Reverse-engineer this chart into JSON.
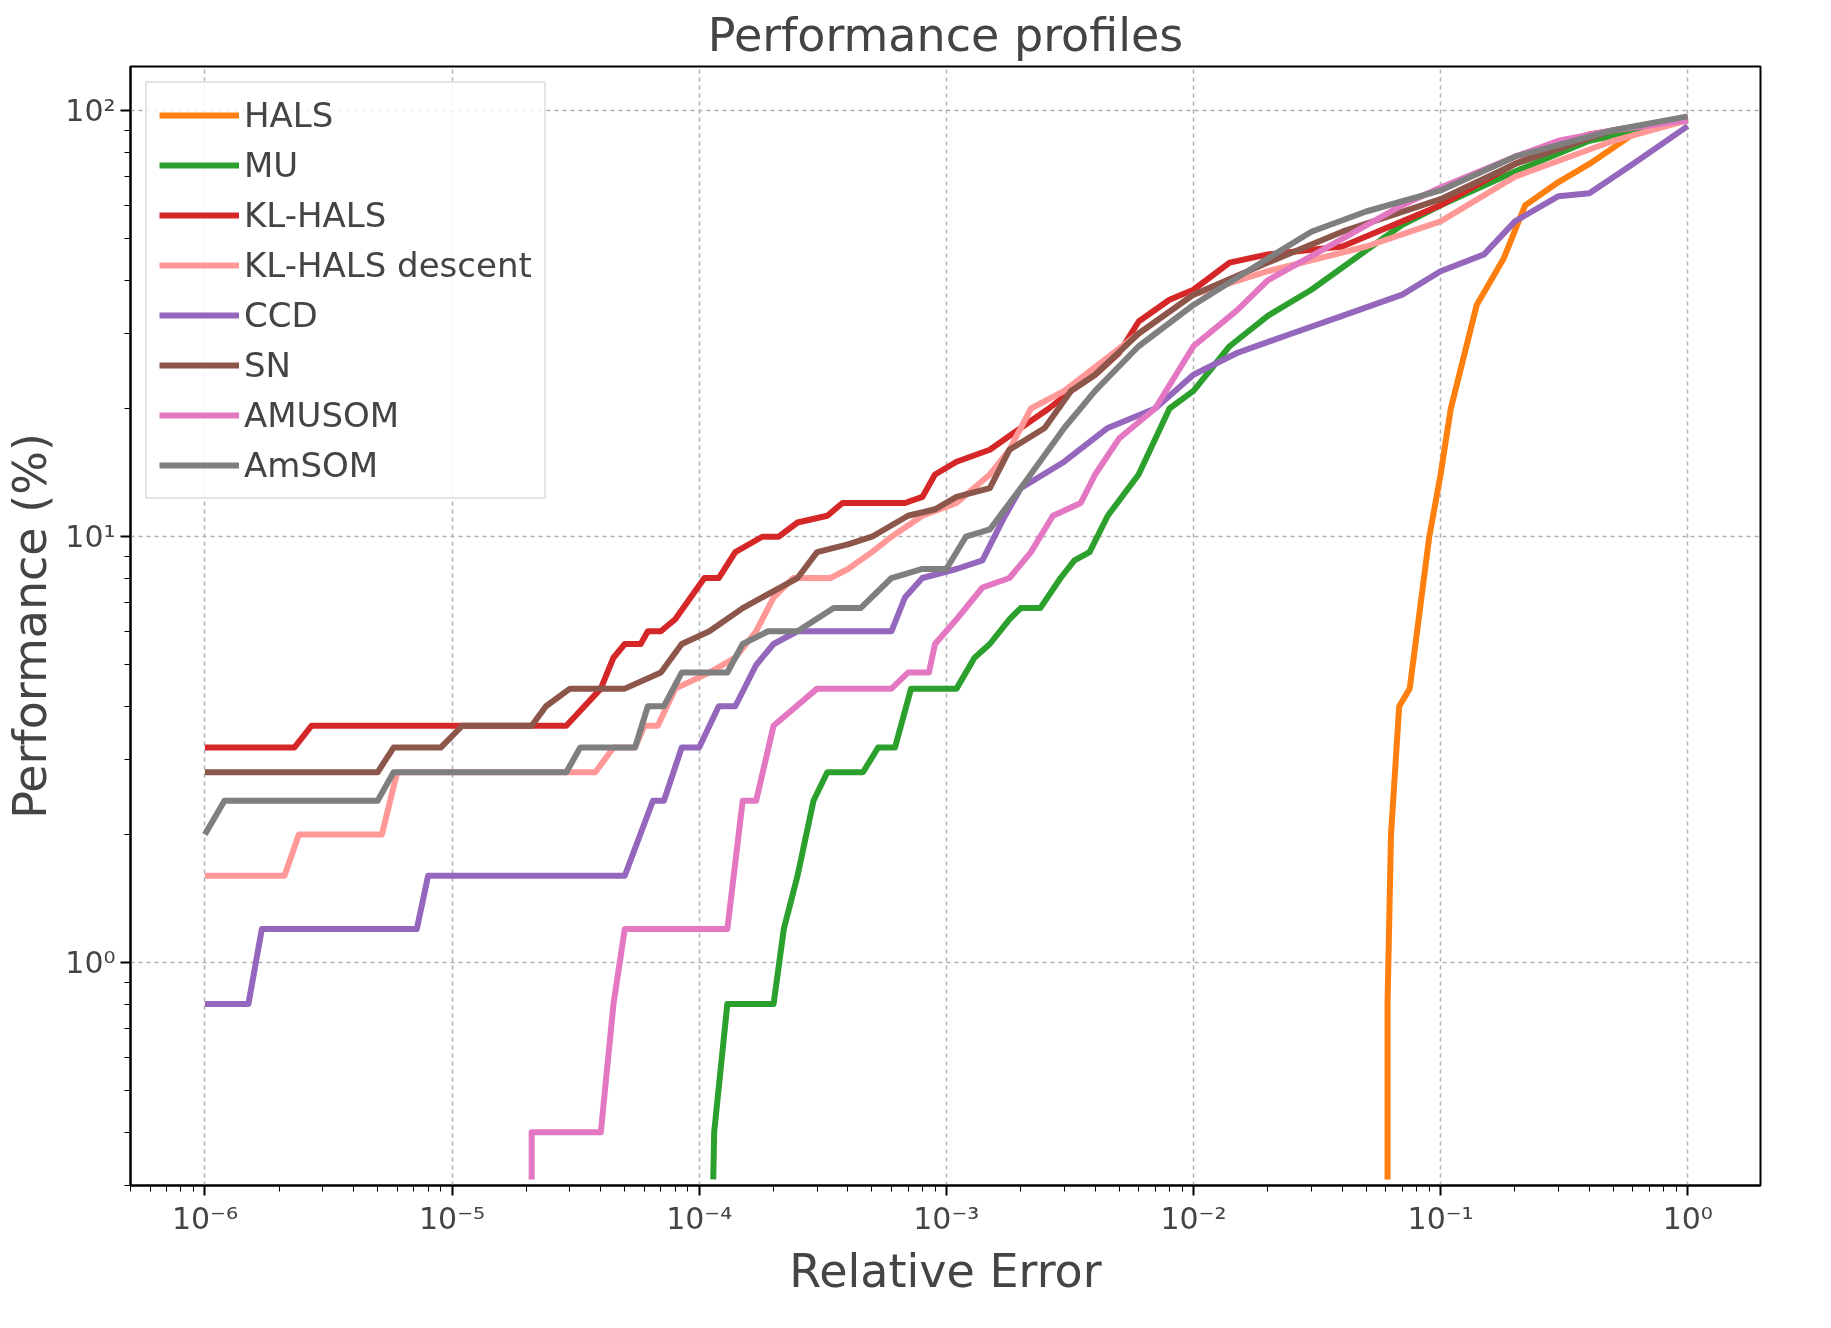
{
  "chart_data": {
    "type": "line",
    "title": "Performance profiles",
    "xlabel": "Relative Error",
    "ylabel": "Performance (%)",
    "log": "xy",
    "grid": true,
    "legend": "top left",
    "line_style": "solid",
    "marker": "none",
    "xlim": [
      5e-07,
      1.97
    ],
    "ylim": [
      0.3,
      127
    ],
    "xticks": [
      {
        "value": 1e-06,
        "label": "10⁻⁶"
      },
      {
        "value": 1e-05,
        "label": "10⁻⁵"
      },
      {
        "value": 0.0001,
        "label": "10⁻⁴"
      },
      {
        "value": 0.001,
        "label": "10⁻³"
      },
      {
        "value": 0.01,
        "label": "10⁻²"
      },
      {
        "value": 0.1,
        "label": "10⁻¹"
      },
      {
        "value": 1,
        "label": "10⁰"
      }
    ],
    "yticks": [
      {
        "value": 1,
        "label": "10⁰"
      },
      {
        "value": 10,
        "label": "10¹"
      },
      {
        "value": 100,
        "label": "10²"
      }
    ],
    "series": [
      {
        "name": "HALS",
        "color": "#ff7f0e",
        "x": [
          0.061,
          0.061,
          0.063,
          0.068,
          0.075,
          0.09,
          0.1,
          0.11,
          0.14,
          0.18,
          0.22,
          0.3,
          0.4,
          0.6,
          1
        ],
        "values": [
          0.31,
          0.8,
          2.0,
          4.0,
          4.4,
          10,
          14,
          20,
          35,
          45,
          60,
          68,
          75,
          88,
          95
        ]
      },
      {
        "name": "MU",
        "color": "#2ca02c",
        "x": [
          0.000114,
          0.000115,
          0.00013,
          0.0002,
          0.00022,
          0.00025,
          0.00029,
          0.00033,
          0.00046,
          0.00053,
          0.00062,
          0.00072,
          0.0011,
          0.0013,
          0.0015,
          0.0018,
          0.002,
          0.0024,
          0.0029,
          0.0033,
          0.0038,
          0.0045,
          0.006,
          0.008,
          0.01,
          0.014,
          0.02,
          0.03,
          0.05,
          0.07,
          0.1,
          0.2,
          0.4,
          1
        ],
        "values": [
          0.31,
          0.4,
          0.8,
          0.8,
          1.2,
          1.6,
          2.4,
          2.8,
          2.8,
          3.2,
          3.2,
          4.4,
          4.4,
          5.2,
          5.6,
          6.4,
          6.8,
          6.8,
          8.0,
          8.8,
          9.2,
          11.2,
          14,
          20,
          22,
          28,
          33,
          38,
          47,
          54,
          60,
          72,
          85,
          95
        ]
      },
      {
        "name": "KL-HALS",
        "color": "#d62728",
        "x": [
          1e-06,
          2.3e-06,
          2.7e-06,
          2.9e-05,
          4e-05,
          4.5e-05,
          5e-05,
          5.8e-05,
          6.2e-05,
          7e-05,
          8e-05,
          0.000105,
          0.00012,
          0.00014,
          0.00018,
          0.00021,
          0.00025,
          0.00033,
          0.00038,
          0.00068,
          0.0008,
          0.0009,
          0.0011,
          0.0015,
          0.002,
          0.0026,
          0.0032,
          0.004,
          0.005,
          0.006,
          0.008,
          0.01,
          0.014,
          0.02,
          0.04,
          0.07,
          0.1,
          0.2,
          0.4,
          1
        ],
        "values": [
          3.2,
          3.2,
          3.6,
          3.6,
          4.4,
          5.2,
          5.6,
          5.6,
          6.0,
          6.0,
          6.4,
          8.0,
          8.0,
          9.2,
          10,
          10,
          10.8,
          11.2,
          12,
          12,
          12.4,
          14,
          15,
          16,
          18,
          20,
          22,
          24,
          27,
          32,
          36,
          38,
          44,
          46,
          48,
          55,
          60,
          75,
          88,
          96
        ]
      },
      {
        "name": "KL-HALS descent",
        "color": "#ff9896",
        "x": [
          1e-06,
          2.1e-06,
          2.4e-06,
          5.2e-06,
          6e-06,
          3.8e-05,
          4.5e-05,
          5.5e-05,
          6e-05,
          6.8e-05,
          8e-05,
          0.00011,
          0.00014,
          0.00017,
          0.0002,
          0.00024,
          0.00034,
          0.0004,
          0.0005,
          0.0006,
          0.0008,
          0.0011,
          0.0015,
          0.0018,
          0.0022,
          0.003,
          0.004,
          0.006,
          0.01,
          0.02,
          0.05,
          0.1,
          0.2,
          0.5,
          1
        ],
        "values": [
          1.6,
          1.6,
          2.0,
          2.0,
          2.8,
          2.8,
          3.2,
          3.2,
          3.6,
          3.6,
          4.4,
          4.8,
          5.2,
          6.0,
          7.2,
          8.0,
          8.0,
          8.4,
          9.2,
          10,
          11.2,
          12,
          14,
          16,
          20,
          22,
          25,
          30,
          37,
          42,
          48,
          55,
          70,
          85,
          95
        ]
      },
      {
        "name": "CCD",
        "color": "#9467bd",
        "x": [
          1e-06,
          1.5e-06,
          1.7e-06,
          7.2e-06,
          8e-06,
          5e-05,
          6.5e-05,
          7.2e-05,
          8.5e-05,
          0.0001,
          0.00012,
          0.00014,
          0.00017,
          0.0002,
          0.00025,
          0.0006,
          0.00068,
          0.0008,
          0.0011,
          0.0014,
          0.0017,
          0.002,
          0.003,
          0.0045,
          0.007,
          0.01,
          0.015,
          0.025,
          0.04,
          0.07,
          0.1,
          0.15,
          0.2,
          0.3,
          0.4,
          0.6,
          1
        ],
        "values": [
          0.8,
          0.8,
          1.2,
          1.2,
          1.6,
          1.6,
          2.4,
          2.4,
          3.2,
          3.2,
          4.0,
          4.0,
          5.0,
          5.6,
          6.0,
          6.0,
          7.2,
          8.0,
          8.4,
          8.8,
          11,
          13,
          15,
          18,
          20,
          24,
          27,
          30,
          33,
          37,
          42,
          46,
          55,
          63,
          64,
          75,
          92
        ]
      },
      {
        "name": "SN",
        "color": "#8c564b",
        "x": [
          1e-06,
          5e-06,
          5.8e-06,
          9e-06,
          1.1e-05,
          2.1e-05,
          2.4e-05,
          3e-05,
          5e-05,
          7e-05,
          8.5e-05,
          0.00011,
          0.00015,
          0.00025,
          0.0003,
          0.0004,
          0.0005,
          0.0007,
          0.0009,
          0.0011,
          0.0015,
          0.0018,
          0.0025,
          0.0032,
          0.004,
          0.006,
          0.01,
          0.02,
          0.04,
          0.1,
          0.2,
          0.5,
          1
        ],
        "values": [
          2.8,
          2.8,
          3.2,
          3.2,
          3.6,
          3.6,
          4.0,
          4.4,
          4.4,
          4.8,
          5.6,
          6.0,
          6.8,
          8.0,
          9.2,
          9.6,
          10,
          11.2,
          11.6,
          12.4,
          13,
          16,
          18,
          22,
          24,
          30,
          37,
          44,
          52,
          62,
          75,
          90,
          96
        ]
      },
      {
        "name": "AMUSOM",
        "color": "#e377c2",
        "x": [
          2.1e-05,
          2.1e-05,
          4e-05,
          4.5e-05,
          5e-05,
          0.00013,
          0.00015,
          0.00017,
          0.0002,
          0.0003,
          0.0006,
          0.0007,
          0.00085,
          0.0009,
          0.0011,
          0.0014,
          0.0018,
          0.0022,
          0.0027,
          0.0035,
          0.004,
          0.005,
          0.007,
          0.01,
          0.015,
          0.02,
          0.04,
          0.07,
          0.1,
          0.2,
          0.3,
          0.5,
          1
        ],
        "values": [
          0.31,
          0.4,
          0.4,
          0.8,
          1.2,
          1.2,
          2.4,
          2.4,
          3.6,
          4.4,
          4.4,
          4.8,
          4.8,
          5.6,
          6.4,
          7.6,
          8.0,
          9.2,
          11.2,
          12,
          14,
          17,
          20,
          28,
          34,
          40,
          50,
          60,
          66,
          78,
          85,
          90,
          95
        ]
      },
      {
        "name": "AmSOM",
        "color": "#7f7f7f",
        "x": [
          1e-06,
          1.2e-06,
          5e-06,
          5.8e-06,
          2.9e-05,
          3.3e-05,
          5.5e-05,
          6.2e-05,
          7.2e-05,
          8.5e-05,
          0.00013,
          0.00015,
          0.00019,
          0.00025,
          0.00035,
          0.00045,
          0.0006,
          0.0008,
          0.001,
          0.0012,
          0.0015,
          0.002,
          0.003,
          0.004,
          0.006,
          0.01,
          0.02,
          0.03,
          0.05,
          0.1,
          0.2,
          0.5,
          1
        ],
        "values": [
          2.0,
          2.4,
          2.4,
          2.8,
          2.8,
          3.2,
          3.2,
          4.0,
          4.0,
          4.8,
          4.8,
          5.6,
          6.0,
          6.0,
          6.8,
          6.8,
          8.0,
          8.4,
          8.4,
          10,
          10.4,
          13,
          18,
          22,
          28,
          35,
          45,
          52,
          58,
          65,
          78,
          90,
          97
        ]
      }
    ]
  }
}
